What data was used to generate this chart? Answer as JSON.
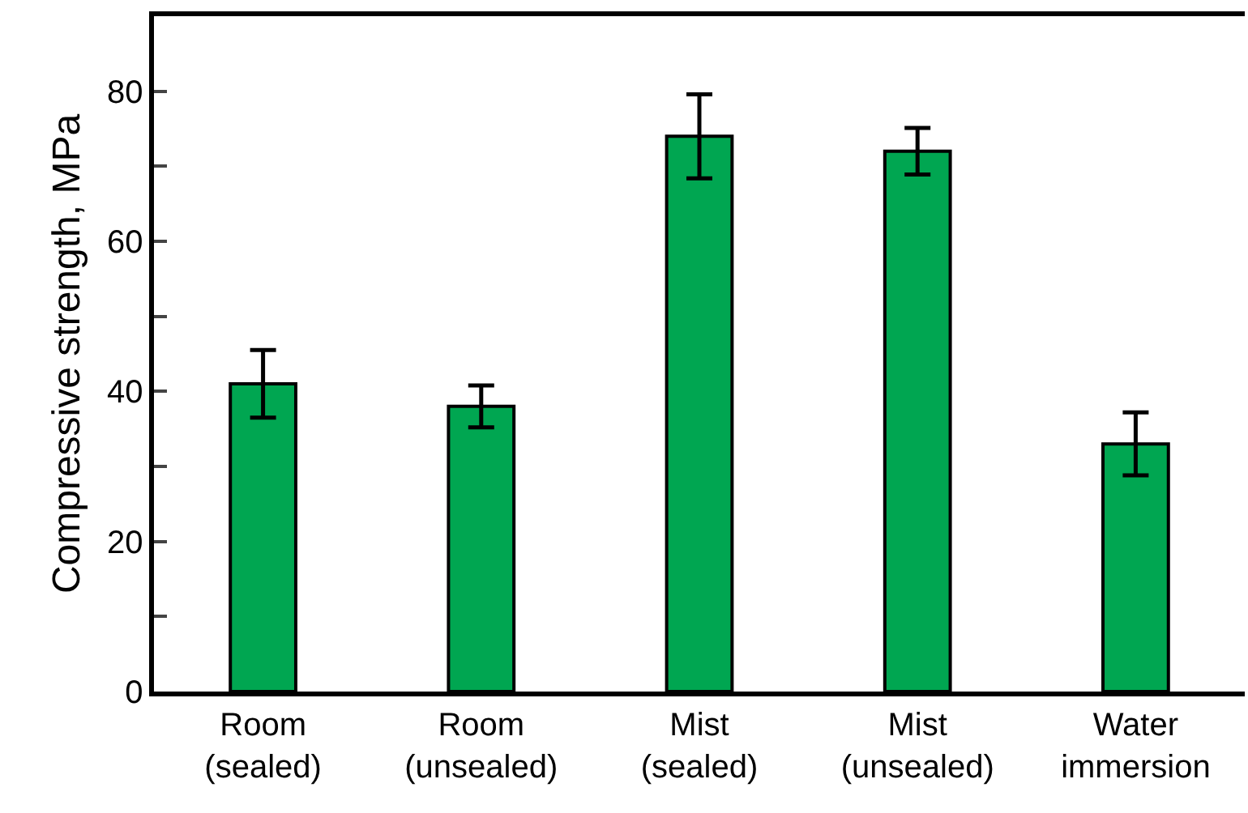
{
  "chart_data": {
    "type": "bar",
    "ylabel": "Compressive strength, MPa",
    "categories": [
      "Room\n(sealed)",
      "Room\n(unsealed)",
      "Mist\n(sealed)",
      "Mist\n(unsealed)",
      "Water\nimmersion"
    ],
    "values": [
      41,
      38,
      74,
      72,
      33
    ],
    "errors": [
      4.5,
      2.8,
      5.6,
      3.1,
      4.2
    ],
    "color": "#00a651",
    "ylim": [
      0,
      90
    ],
    "yticks": [
      0,
      {
        "value": 10,
        "label": null
      },
      20,
      {
        "value": 30,
        "label": null
      },
      40,
      {
        "value": 50,
        "label": null
      },
      60,
      {
        "value": 70,
        "label": null
      },
      80
    ]
  }
}
